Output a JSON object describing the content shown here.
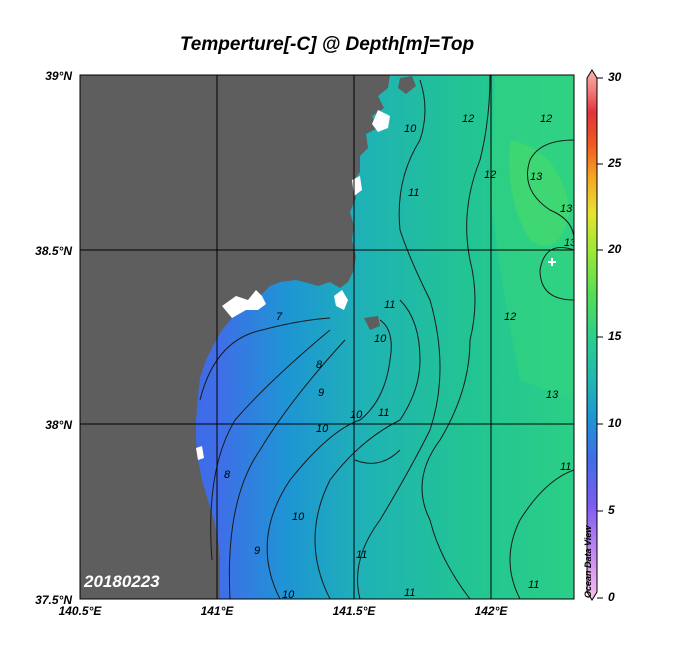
{
  "title": "Temperture[-C] @ Depth[m]=Top",
  "date_stamp": "20180223",
  "watermark": "Ocean Data View",
  "lat_labels": [
    "39°N",
    "38.5°N",
    "38°N",
    "37.5°N"
  ],
  "lon_labels": [
    "140.5°E",
    "141°E",
    "141.5°E",
    "142°E"
  ],
  "colorbar": {
    "ticks": [
      "30",
      "25",
      "20",
      "15",
      "10",
      "5",
      "0"
    ],
    "colors": [
      "#f9c0e8",
      "#c98cf2",
      "#7b5cf0",
      "#3f6ee8",
      "#1e95d4",
      "#22b8b0",
      "#2fcf8a",
      "#58de52",
      "#9ee838",
      "#e6e230",
      "#f6a423",
      "#ee5a22",
      "#e2333a",
      "#f07a7a",
      "#f7b6ae"
    ]
  },
  "colors": {
    "land": "#5e5e5e",
    "coast_white": "#ffffff",
    "cold_water": "#3f6ee8",
    "mid_water": "#1e95d4",
    "warm_water": "#2fcf8a",
    "contour": "#1a1a1a"
  },
  "contour_labels": [
    "7",
    "8",
    "9",
    "10",
    "10",
    "10",
    "10",
    "10",
    "11",
    "11",
    "11",
    "11",
    "11",
    "11",
    "12",
    "12",
    "12",
    "12",
    "13",
    "13",
    "13",
    "13",
    "8",
    "9",
    "10",
    "11"
  ]
}
